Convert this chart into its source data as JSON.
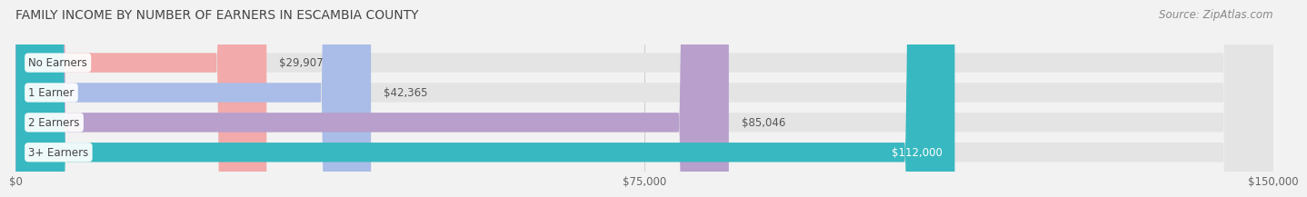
{
  "title": "FAMILY INCOME BY NUMBER OF EARNERS IN ESCAMBIA COUNTY",
  "source": "Source: ZipAtlas.com",
  "categories": [
    "No Earners",
    "1 Earner",
    "2 Earners",
    "3+ Earners"
  ],
  "values": [
    29907,
    42365,
    85046,
    112000
  ],
  "bar_colors": [
    "#f2aaaa",
    "#aabde8",
    "#b89fcc",
    "#38b8c0"
  ],
  "label_colors": [
    "#555555",
    "#555555",
    "#555555",
    "#ffffff"
  ],
  "value_labels": [
    "$29,907",
    "$42,365",
    "$85,046",
    "$112,000"
  ],
  "xlim": [
    0,
    150000
  ],
  "xticks": [
    0,
    75000,
    150000
  ],
  "xtick_labels": [
    "$0",
    "$75,000",
    "$150,000"
  ],
  "background_color": "#f2f2f2",
  "bar_background_color": "#e4e4e4",
  "title_fontsize": 10,
  "source_fontsize": 8.5,
  "label_fontsize": 8.5,
  "value_fontsize": 8.5,
  "tick_fontsize": 8.5
}
